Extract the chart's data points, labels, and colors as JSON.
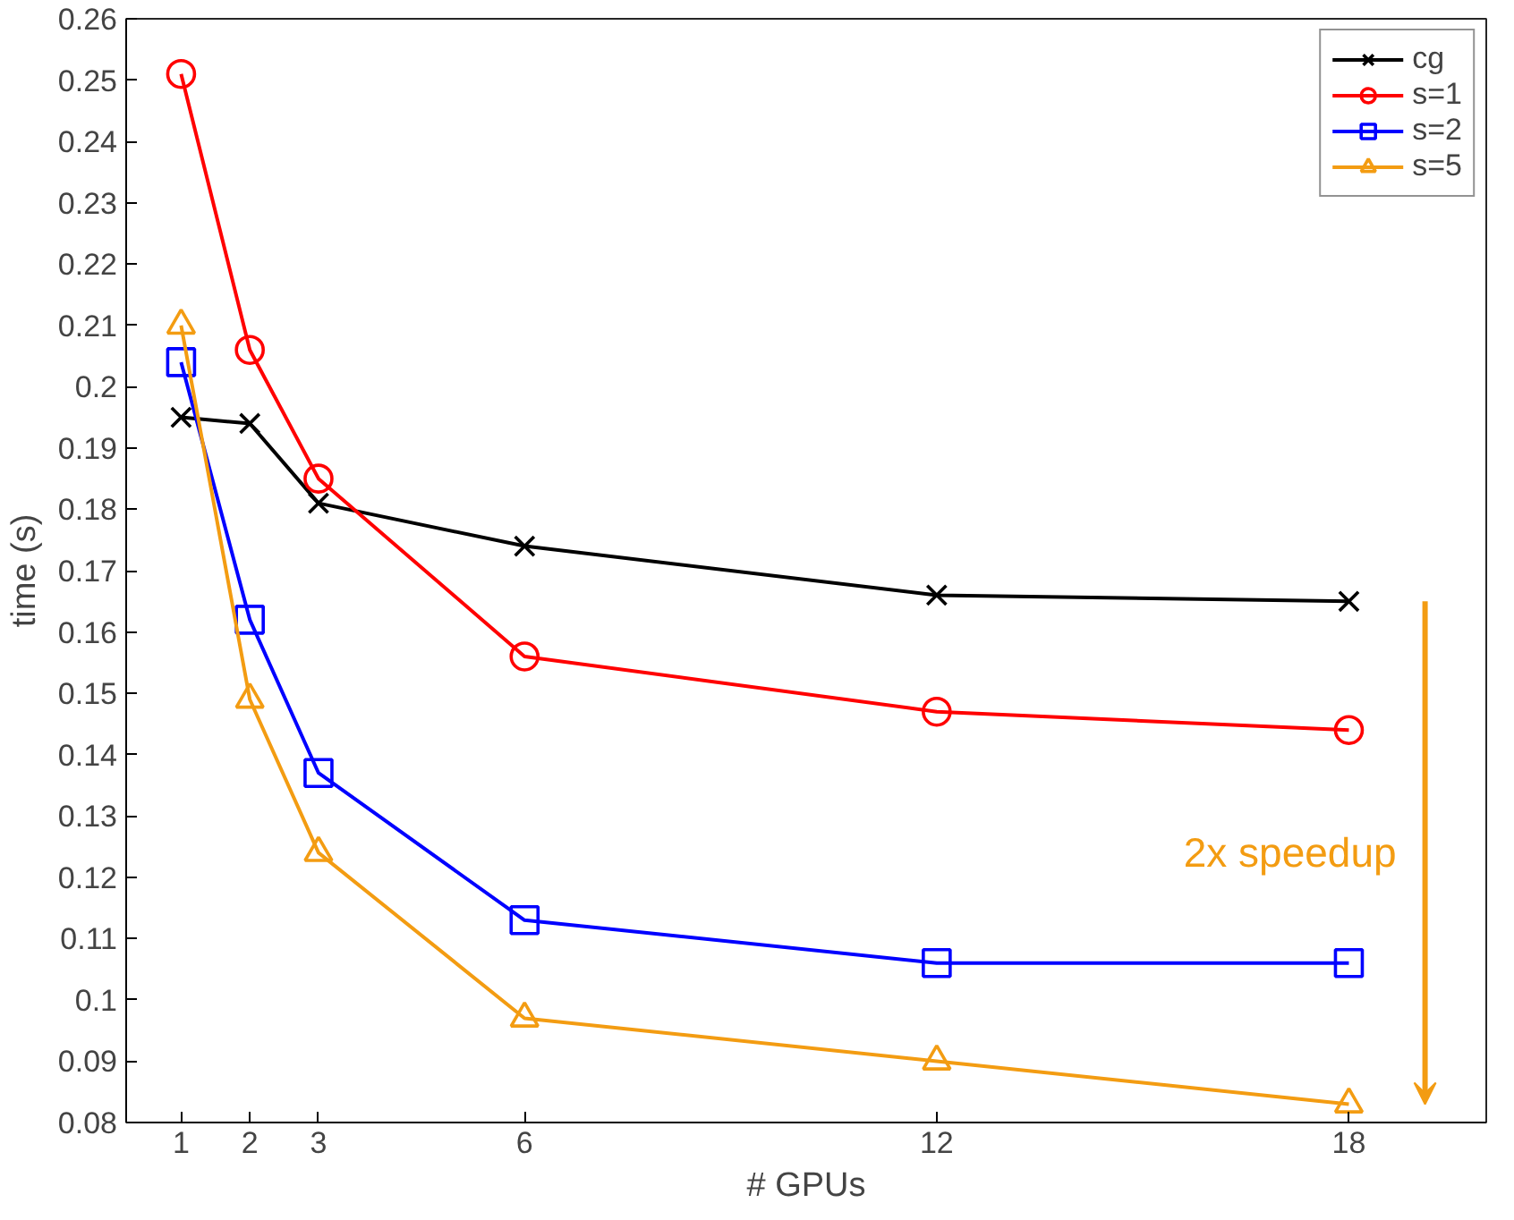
{
  "chart_data": {
    "type": "line",
    "xlabel": "# GPUs",
    "ylabel": "time (s)",
    "x": [
      1,
      2,
      3,
      6,
      12,
      18
    ],
    "xlim": [
      0.2,
      20
    ],
    "xticks": [
      1,
      2,
      3,
      6,
      12,
      18
    ],
    "ylim": [
      0.08,
      0.26
    ],
    "yticks": [
      0.08,
      0.09,
      {
        "value": 0.1,
        "label": "0.1"
      },
      0.11,
      0.12,
      0.13,
      0.14,
      0.15,
      0.16,
      0.17,
      0.18,
      0.19,
      {
        "value": 0.2,
        "label": "0.2"
      },
      0.21,
      0.22,
      0.23,
      0.24,
      0.25,
      0.26
    ],
    "grid": false,
    "legend": "top right",
    "series": [
      {
        "name": "cg",
        "color": "#000000",
        "marker": "cross",
        "values": [
          0.195,
          0.194,
          0.181,
          0.174,
          0.166,
          0.165
        ]
      },
      {
        "name": "s=1",
        "color": "#ff0000",
        "marker": "circle",
        "values": [
          0.251,
          0.206,
          0.185,
          0.156,
          0.147,
          0.144
        ]
      },
      {
        "name": "s=2",
        "color": "#0000ff",
        "marker": "square",
        "values": [
          0.204,
          0.162,
          0.137,
          0.113,
          0.106,
          0.106
        ]
      },
      {
        "name": "s=5",
        "color": "#f39c12",
        "marker": "triangle",
        "values": [
          0.21,
          0.149,
          0.124,
          0.097,
          0.09,
          0.083
        ]
      }
    ],
    "annotations": [
      "2x speedup"
    ]
  }
}
